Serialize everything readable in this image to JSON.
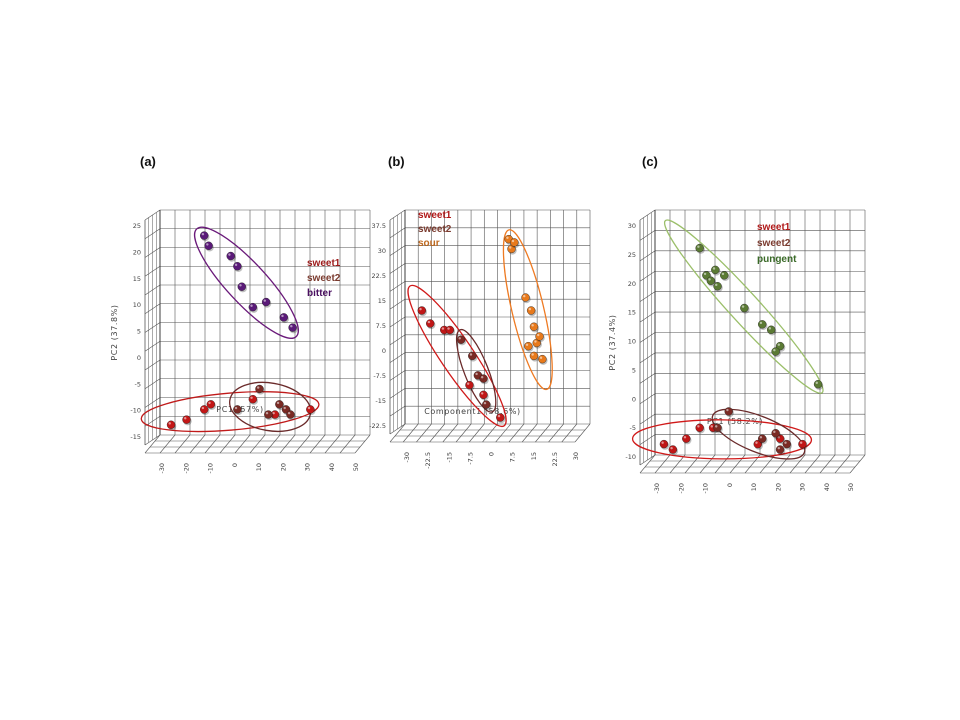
{
  "chart_data": [
    {
      "type": "scatter",
      "panel_label": "(a)",
      "xlabel": "PC1 (57%)",
      "ylabel": "PC2 (37.8%)",
      "xlim": [
        -40,
        55
      ],
      "ylim": [
        -17,
        27
      ],
      "xticks": [
        "-30",
        "-20",
        "-10",
        "0",
        "10",
        "20",
        "30",
        "40",
        "50"
      ],
      "yticks": [
        "25",
        "20",
        "15",
        "10",
        "5",
        "0",
        "-5",
        "-10",
        "-15"
      ],
      "legend": [
        "sweet1",
        "sweet2",
        "bitter"
      ],
      "legend_colors": [
        "#9b1818",
        "#7a3a2e",
        "#4a1060"
      ],
      "series": [
        {
          "name": "sweet1",
          "color": "#c31717",
          "points": [
            [
              -35,
              -15
            ],
            [
              -28,
              -14
            ],
            [
              -20,
              -12
            ],
            [
              -17,
              -11
            ],
            [
              2,
              -10
            ],
            [
              12,
              -13
            ],
            [
              28,
              -12
            ]
          ]
        },
        {
          "name": "sweet2",
          "color": "#7a2a24",
          "points": [
            [
              -5,
              -12
            ],
            [
              5,
              -8
            ],
            [
              9,
              -13
            ],
            [
              14,
              -11
            ],
            [
              17,
              -12
            ],
            [
              19,
              -13
            ]
          ]
        },
        {
          "name": "bitter",
          "color": "#5a1a78",
          "points": [
            [
              -20,
              22
            ],
            [
              -18,
              20
            ],
            [
              -8,
              18
            ],
            [
              -5,
              16
            ],
            [
              -3,
              12
            ],
            [
              2,
              8
            ],
            [
              8,
              9
            ],
            [
              16,
              6
            ],
            [
              20,
              4
            ]
          ]
        }
      ]
    },
    {
      "type": "scatter",
      "panel_label": "(b)",
      "xlabel": "Component1 (58.6%)",
      "ylabel": "",
      "xlim": [
        -33,
        33
      ],
      "ylim": [
        -26,
        40
      ],
      "xticks": [
        "-30",
        "-22.5",
        "-15",
        "-7.5",
        "0",
        "7.5",
        "15",
        "22.5",
        "30"
      ],
      "yticks": [
        "37.5",
        "30",
        "22.5",
        "15",
        "7.5",
        "0",
        "-7.5",
        "-15",
        "-22.5"
      ],
      "legend": [
        "sweet1",
        "sweet2",
        "sour"
      ],
      "legend_colors": [
        "#b01818",
        "#7a3a2e",
        "#c06a20"
      ],
      "series": [
        {
          "name": "sweet1",
          "color": "#c01717",
          "points": [
            [
              -27,
              9
            ],
            [
              -24,
              5
            ],
            [
              -19,
              3
            ],
            [
              -17,
              3
            ],
            [
              -10,
              -14
            ],
            [
              -5,
              -17
            ],
            [
              1,
              -24
            ]
          ]
        },
        {
          "name": "sweet2",
          "color": "#7a2a24",
          "points": [
            [
              -13,
              0
            ],
            [
              -9,
              -5
            ],
            [
              -7,
              -11
            ],
            [
              -5,
              -12
            ],
            [
              -4,
              -20
            ]
          ]
        },
        {
          "name": "sour",
          "color": "#e87a1c",
          "points": [
            [
              4,
              31
            ],
            [
              5,
              28
            ],
            [
              6,
              30
            ],
            [
              10,
              13
            ],
            [
              12,
              9
            ],
            [
              13,
              4
            ],
            [
              11,
              -2
            ],
            [
              14,
              -1
            ],
            [
              15,
              1
            ],
            [
              13,
              -5
            ],
            [
              16,
              -6
            ]
          ]
        }
      ]
    },
    {
      "type": "scatter",
      "panel_label": "(c)",
      "xlabel": "PC1 (58.2%)",
      "ylabel": "PC2 (37.4%)",
      "xlim": [
        -38,
        56
      ],
      "ylim": [
        -13,
        32
      ],
      "xticks": [
        "-30",
        "-20",
        "-10",
        "0",
        "10",
        "20",
        "30",
        "40",
        "50"
      ],
      "yticks": [
        "30",
        "25",
        "20",
        "15",
        "10",
        "5",
        "0",
        "-5",
        "-10"
      ],
      "legend": [
        "sweet1",
        "sweet2",
        "pungent"
      ],
      "legend_colors": [
        "#b01818",
        "#7a3a2e",
        "#3a6a28"
      ],
      "series": [
        {
          "name": "sweet1",
          "color": "#c01717",
          "points": [
            [
              -34,
              -11
            ],
            [
              -30,
              -12
            ],
            [
              -24,
              -10
            ],
            [
              -18,
              -8
            ],
            [
              -12,
              -8
            ],
            [
              8,
              -11
            ],
            [
              18,
              -10
            ],
            [
              28,
              -11
            ]
          ]
        },
        {
          "name": "sweet2",
          "color": "#7a2a24",
          "points": [
            [
              -10,
              -8
            ],
            [
              -5,
              -5
            ],
            [
              10,
              -10
            ],
            [
              16,
              -9
            ],
            [
              18,
              -12
            ],
            [
              21,
              -11
            ]
          ]
        },
        {
          "name": "pungent",
          "color": "#5b7a34",
          "points": [
            [
              -18,
              25
            ],
            [
              -15,
              20
            ],
            [
              -13,
              19
            ],
            [
              -11,
              21
            ],
            [
              -7,
              20
            ],
            [
              -10,
              18
            ],
            [
              2,
              14
            ],
            [
              10,
              11
            ],
            [
              14,
              10
            ],
            [
              18,
              7
            ],
            [
              16,
              6
            ],
            [
              35,
              0
            ]
          ]
        }
      ]
    }
  ]
}
